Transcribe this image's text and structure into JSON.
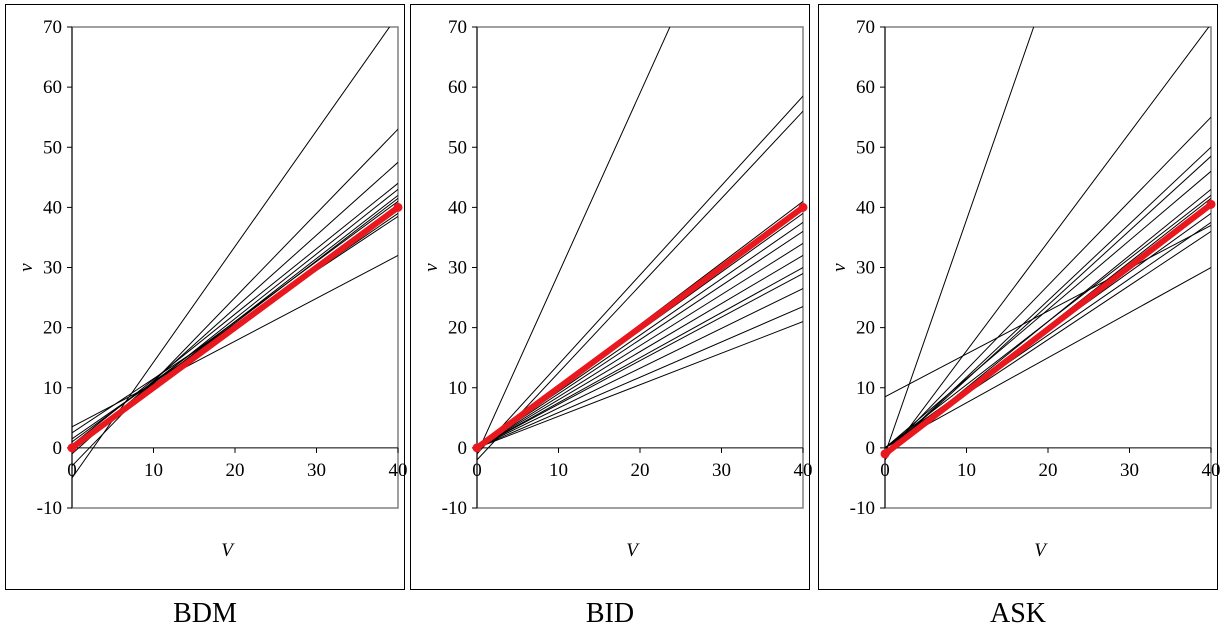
{
  "charts": [
    {
      "caption": "BDM",
      "chart_data": {
        "type": "line",
        "xlabel": "V",
        "ylabel": "v",
        "xlim": [
          0,
          40
        ],
        "ylim": [
          -10,
          70
        ],
        "xticks": [
          "0",
          "10",
          "20",
          "30",
          "40"
        ],
        "yticks": [
          "-10",
          "0",
          "10",
          "20",
          "30",
          "40",
          "50",
          "60",
          "70"
        ],
        "series": [
          {
            "x": [
              0,
              40
            ],
            "y": [
              -5,
              72
            ],
            "style": "thin"
          },
          {
            "x": [
              0,
              40
            ],
            "y": [
              -3,
              53
            ],
            "style": "thin"
          },
          {
            "x": [
              0,
              40
            ],
            "y": [
              -1,
              47.5
            ],
            "style": "thin"
          },
          {
            "x": [
              0,
              40
            ],
            "y": [
              0.5,
              44
            ],
            "style": "thin"
          },
          {
            "x": [
              0,
              40
            ],
            "y": [
              0,
              43
            ],
            "style": "thin"
          },
          {
            "x": [
              0,
              40
            ],
            "y": [
              0,
              42
            ],
            "style": "thin"
          },
          {
            "x": [
              0,
              40
            ],
            "y": [
              0,
              41.5
            ],
            "style": "thin"
          },
          {
            "x": [
              0,
              40
            ],
            "y": [
              1,
              41
            ],
            "style": "thin"
          },
          {
            "x": [
              0,
              40
            ],
            "y": [
              0,
              40.5
            ],
            "style": "thin"
          },
          {
            "x": [
              0,
              40
            ],
            "y": [
              0.5,
              40
            ],
            "style": "thin"
          },
          {
            "x": [
              0,
              40
            ],
            "y": [
              0,
              39.5
            ],
            "style": "thin"
          },
          {
            "x": [
              0,
              40
            ],
            "y": [
              1.5,
              39
            ],
            "style": "thin"
          },
          {
            "x": [
              0,
              40
            ],
            "y": [
              2.5,
              38.5
            ],
            "style": "thin"
          },
          {
            "x": [
              0,
              40
            ],
            "y": [
              3.5,
              32
            ],
            "style": "thin"
          },
          {
            "x": [
              0,
              40
            ],
            "y": [
              0,
              40
            ],
            "style": "bold"
          }
        ]
      }
    },
    {
      "caption": "BID",
      "chart_data": {
        "type": "line",
        "xlabel": "V",
        "ylabel": "v",
        "xlim": [
          0,
          40
        ],
        "ylim": [
          -10,
          70
        ],
        "xticks": [
          "0",
          "10",
          "20",
          "30",
          "40"
        ],
        "yticks": [
          "-10",
          "0",
          "10",
          "20",
          "30",
          "40",
          "50",
          "60",
          "70"
        ],
        "series": [
          {
            "x": [
              0,
              24
            ],
            "y": [
              -1,
              71
            ],
            "style": "thin"
          },
          {
            "x": [
              0,
              40
            ],
            "y": [
              -1,
              58.5
            ],
            "style": "thin"
          },
          {
            "x": [
              0,
              40
            ],
            "y": [
              -2,
              56
            ],
            "style": "thin"
          },
          {
            "x": [
              0,
              40
            ],
            "y": [
              0,
              41
            ],
            "style": "thin"
          },
          {
            "x": [
              0,
              40
            ],
            "y": [
              0,
              39
            ],
            "style": "thin"
          },
          {
            "x": [
              0,
              40
            ],
            "y": [
              0,
              37.5
            ],
            "style": "thin"
          },
          {
            "x": [
              0,
              40
            ],
            "y": [
              0,
              36
            ],
            "style": "thin"
          },
          {
            "x": [
              0,
              40
            ],
            "y": [
              0,
              34
            ],
            "style": "thin"
          },
          {
            "x": [
              0,
              40
            ],
            "y": [
              0,
              32
            ],
            "style": "thin"
          },
          {
            "x": [
              0,
              40
            ],
            "y": [
              0,
              30
            ],
            "style": "thin"
          },
          {
            "x": [
              0,
              40
            ],
            "y": [
              0,
              29
            ],
            "style": "thin"
          },
          {
            "x": [
              0,
              40
            ],
            "y": [
              0,
              26.5
            ],
            "style": "thin"
          },
          {
            "x": [
              0,
              40
            ],
            "y": [
              0,
              23.5
            ],
            "style": "thin"
          },
          {
            "x": [
              0,
              40
            ],
            "y": [
              0,
              21
            ],
            "style": "thin"
          },
          {
            "x": [
              0,
              40
            ],
            "y": [
              0,
              40
            ],
            "style": "bold"
          }
        ]
      }
    },
    {
      "caption": "ASK",
      "chart_data": {
        "type": "line",
        "xlabel": "V",
        "ylabel": "v",
        "xlim": [
          0,
          40
        ],
        "ylim": [
          -10,
          70
        ],
        "xticks": [
          "0",
          "10",
          "20",
          "30",
          "40"
        ],
        "yticks": [
          "-10",
          "0",
          "10",
          "20",
          "30",
          "40",
          "50",
          "60",
          "70"
        ],
        "series": [
          {
            "x": [
              0,
              18.5
            ],
            "y": [
              -1,
              71
            ],
            "style": "thin"
          },
          {
            "x": [
              0,
              40
            ],
            "y": [
              -2,
              70.5
            ],
            "style": "thin"
          },
          {
            "x": [
              0,
              40
            ],
            "y": [
              -1,
              55
            ],
            "style": "thin"
          },
          {
            "x": [
              0,
              40
            ],
            "y": [
              -1,
              50
            ],
            "style": "thin"
          },
          {
            "x": [
              0,
              40
            ],
            "y": [
              -1,
              48.5
            ],
            "style": "thin"
          },
          {
            "x": [
              0,
              40
            ],
            "y": [
              0,
              46
            ],
            "style": "thin"
          },
          {
            "x": [
              0,
              40
            ],
            "y": [
              -1,
              43
            ],
            "style": "thin"
          },
          {
            "x": [
              0,
              40
            ],
            "y": [
              0,
              42
            ],
            "style": "thin"
          },
          {
            "x": [
              0,
              40
            ],
            "y": [
              -1,
              41.5
            ],
            "style": "thin"
          },
          {
            "x": [
              0,
              40
            ],
            "y": [
              0,
              39
            ],
            "style": "thin"
          },
          {
            "x": [
              0,
              40
            ],
            "y": [
              0,
              37.5
            ],
            "style": "thin"
          },
          {
            "x": [
              0,
              40
            ],
            "y": [
              0,
              36
            ],
            "style": "thin"
          },
          {
            "x": [
              0,
              40
            ],
            "y": [
              8.5,
              37
            ],
            "style": "thin"
          },
          {
            "x": [
              0,
              40
            ],
            "y": [
              0,
              30
            ],
            "style": "thin"
          },
          {
            "x": [
              0,
              40
            ],
            "y": [
              -1,
              40.5
            ],
            "style": "bold"
          }
        ]
      }
    }
  ],
  "colors": {
    "thin_line": "#000000",
    "bold_line": "#e8181e",
    "plot_border": "#808080"
  }
}
